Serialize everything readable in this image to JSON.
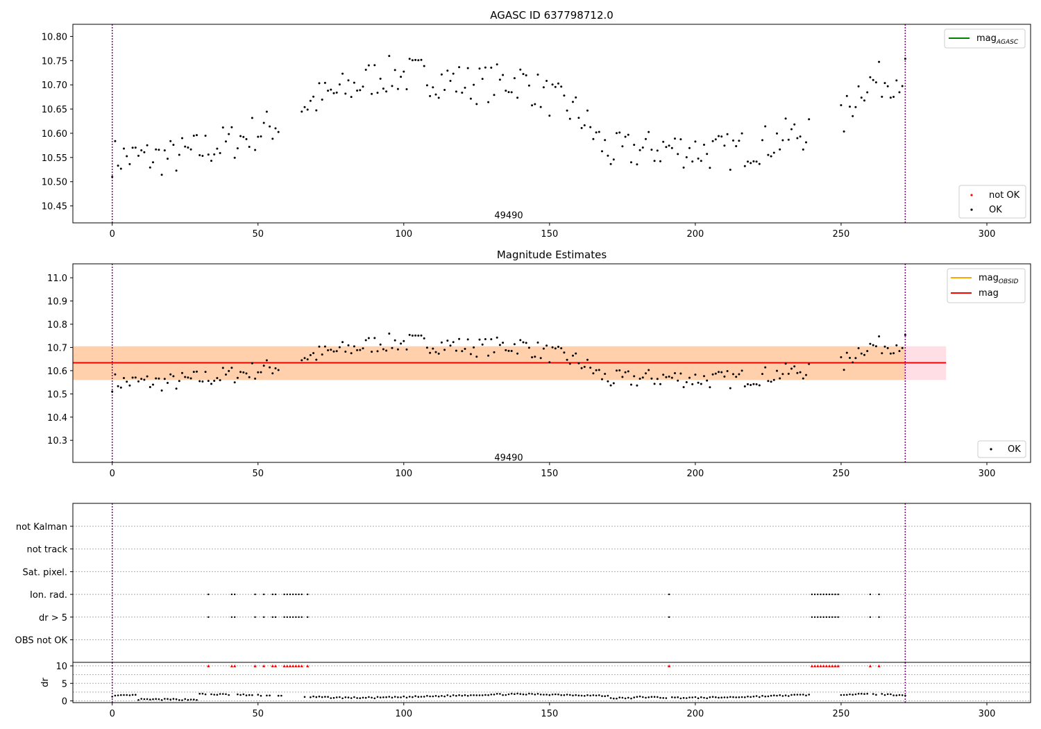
{
  "chart_data": [
    {
      "type": "scatter",
      "title": "AGASC ID 637798712.0",
      "xlim": [
        -13.5,
        315
      ],
      "ylim": [
        10.415,
        10.825
      ],
      "yticks": [
        10.45,
        10.5,
        10.55,
        10.6,
        10.65,
        10.7,
        10.75,
        10.8
      ],
      "xticks": [
        0,
        50,
        100,
        150,
        200,
        250,
        300
      ],
      "vlines": [
        0,
        272
      ],
      "annotation": {
        "text": "49490",
        "x": 136,
        "y": 10.43
      },
      "legend_lines": [
        {
          "label": "mag",
          "sub": "AGASC",
          "color": "#008000"
        }
      ],
      "legend_points": [
        {
          "label": "not OK",
          "color": "#ff0000"
        },
        {
          "label": "OK",
          "color": "#000000"
        }
      ]
    },
    {
      "type": "scatter",
      "title": "Magnitude Estimates",
      "xlim": [
        -13.5,
        315
      ],
      "ylim": [
        10.205,
        11.06
      ],
      "yticks": [
        10.3,
        10.4,
        10.5,
        10.6,
        10.7,
        10.8,
        10.9,
        11.0
      ],
      "xticks": [
        0,
        50,
        100,
        150,
        200,
        250,
        300
      ],
      "vlines": [
        0,
        272
      ],
      "mag_line": 10.634,
      "band_obsid": [
        10.56,
        10.705
      ],
      "band_mag": [
        10.56,
        10.705
      ],
      "band_x": [
        -13.5,
        286
      ],
      "annotation": {
        "text": "49490",
        "x": 136,
        "y": 10.225
      },
      "legend_lines": [
        {
          "label": "mag",
          "sub": "OBSID",
          "color": "#ffa500"
        },
        {
          "label": "mag",
          "sub": "",
          "color": "#ff0000"
        }
      ],
      "legend_points": [
        {
          "label": "OK",
          "color": "#000000"
        }
      ]
    },
    {
      "type": "scatter",
      "title": "",
      "xlim": [
        -13.5,
        315
      ],
      "xticks": [
        0,
        50,
        100,
        150,
        200,
        250,
        300
      ],
      "vlines": [
        0,
        272
      ],
      "flag_labels": [
        "not Kalman",
        "not track",
        "Sat. pixel.",
        "Ion. rad.",
        "dr > 5",
        "OBS not OK"
      ],
      "flag_x": [
        33,
        41,
        42,
        49,
        52,
        55,
        56,
        59,
        60,
        61,
        62,
        63,
        64,
        65,
        67,
        191,
        240,
        241,
        242,
        243,
        244,
        245,
        246,
        247,
        248,
        249,
        260,
        263
      ],
      "dr_ylabel": "dr",
      "dr_ylim": [
        -0.5,
        11
      ],
      "dr_yticks": [
        0,
        5,
        10
      ],
      "dr_cap": 10
    }
  ]
}
